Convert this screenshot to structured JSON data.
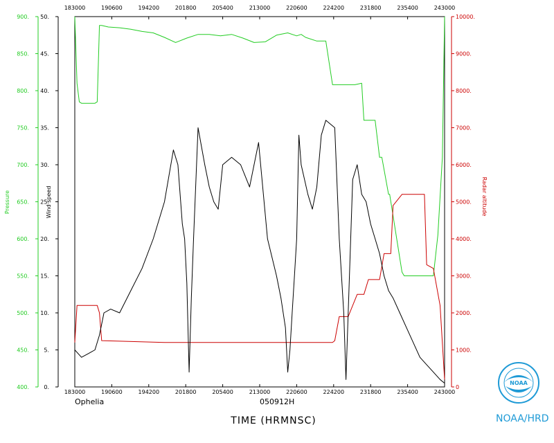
{
  "chart_data": {
    "type": "line",
    "storm_name": "Ophelia",
    "flight_id": "050912H",
    "xlabel": "TIME (HRMNSC)",
    "credit": "NOAA/HRD",
    "logo_text": "NOAA",
    "x_ticks": [
      "183000",
      "190600",
      "194200",
      "201800",
      "205400",
      "213000",
      "220600",
      "224200",
      "231800",
      "235400",
      "243000"
    ],
    "axes": [
      {
        "id": "pressure",
        "label": "Pressure",
        "color": "#22cc22",
        "range": [
          400,
          900
        ],
        "ticks": [
          "400.",
          "450.",
          "500.",
          "550.",
          "600.",
          "650.",
          "700.",
          "750.",
          "800.",
          "850.",
          "900."
        ]
      },
      {
        "id": "wind",
        "label": "Wind speed",
        "color": "#000000",
        "range": [
          0,
          50
        ],
        "ticks": [
          "0.",
          "5.",
          "10.",
          "15.",
          "20.",
          "25.",
          "30.",
          "35.",
          "40.",
          "45.",
          "50."
        ]
      },
      {
        "id": "altitude",
        "label": "Radar altitude",
        "color": "#cc0000",
        "range": [
          0,
          10000
        ],
        "ticks": [
          "0",
          "1000.",
          "2000.",
          "3000.",
          "4000.",
          "5000.",
          "6000.",
          "7000.",
          "8000.",
          "9000.",
          "10000."
        ]
      }
    ],
    "series": [
      {
        "name": "Pressure",
        "axis": "pressure",
        "color": "#22cc22",
        "x": [
          0,
          1,
          2,
          3,
          4,
          5,
          6,
          7,
          8,
          9,
          10,
          11,
          12,
          15,
          20,
          25,
          30,
          35,
          40,
          45,
          50,
          55,
          60,
          65,
          70,
          75,
          80,
          85,
          90,
          95,
          99,
          101,
          103,
          108,
          112,
          115,
          116,
          125,
          128,
          129,
          134,
          136,
          137,
          140,
          140.5,
          146,
          147,
          150,
          160,
          162,
          164,
          165
        ],
        "y": [
          900,
          810,
          785,
          783,
          783,
          783,
          783,
          783,
          783,
          783,
          785,
          888,
          888,
          886,
          885,
          883,
          880,
          878,
          872,
          865,
          871,
          876,
          876,
          874,
          876,
          871,
          865,
          866,
          875,
          878,
          874,
          876,
          872,
          867,
          867,
          808,
          808,
          808,
          810,
          760,
          760,
          710,
          710,
          660,
          660,
          555,
          550,
          550,
          550,
          605,
          710,
          900
        ]
      },
      {
        "name": "Radar altitude",
        "axis": "altitude",
        "color": "#cc0000",
        "x": [
          0,
          1,
          10,
          11,
          12,
          40,
          60,
          80,
          100,
          115,
          116,
          118,
          122,
          126,
          129,
          131,
          136,
          138,
          141,
          142,
          146,
          156,
          157,
          160,
          163,
          165
        ],
        "y": [
          1200,
          2200,
          2200,
          2000,
          1250,
          1200,
          1200,
          1200,
          1200,
          1200,
          1250,
          1900,
          1900,
          2500,
          2500,
          2900,
          2900,
          3600,
          3600,
          4900,
          5200,
          5200,
          3300,
          3200,
          2200,
          200
        ]
      },
      {
        "name": "Wind speed",
        "axis": "wind",
        "color": "#000000",
        "x": [
          0,
          3,
          6,
          9,
          11,
          13,
          16,
          20,
          25,
          30,
          35,
          40,
          44,
          46,
          48,
          49,
          50,
          51,
          52,
          53,
          55,
          58,
          60,
          62,
          64,
          66,
          70,
          74,
          78,
          82,
          86,
          90,
          92,
          94,
          95,
          96,
          97,
          98,
          99,
          100,
          101,
          104,
          106,
          108,
          110,
          112,
          116,
          118,
          120,
          121,
          122,
          124,
          126,
          128,
          130,
          132,
          134,
          136,
          138,
          140,
          142,
          145,
          148,
          151,
          154,
          157,
          160,
          163,
          165
        ],
        "y": [
          5,
          4,
          4.5,
          5,
          7,
          10,
          10.5,
          10,
          13,
          16,
          20,
          25,
          32,
          30,
          22,
          20,
          14,
          2,
          12,
          20,
          35,
          30,
          27,
          25,
          24,
          30,
          31,
          30,
          27,
          33,
          20,
          15,
          12,
          8,
          2,
          5,
          10,
          15,
          20,
          34,
          30,
          26,
          24,
          27,
          34,
          36,
          35,
          20,
          10,
          1,
          10,
          28,
          30,
          26,
          25,
          22,
          20,
          18,
          15,
          13,
          12,
          10,
          8,
          6,
          4,
          3,
          2,
          1,
          0.5
        ]
      }
    ]
  }
}
